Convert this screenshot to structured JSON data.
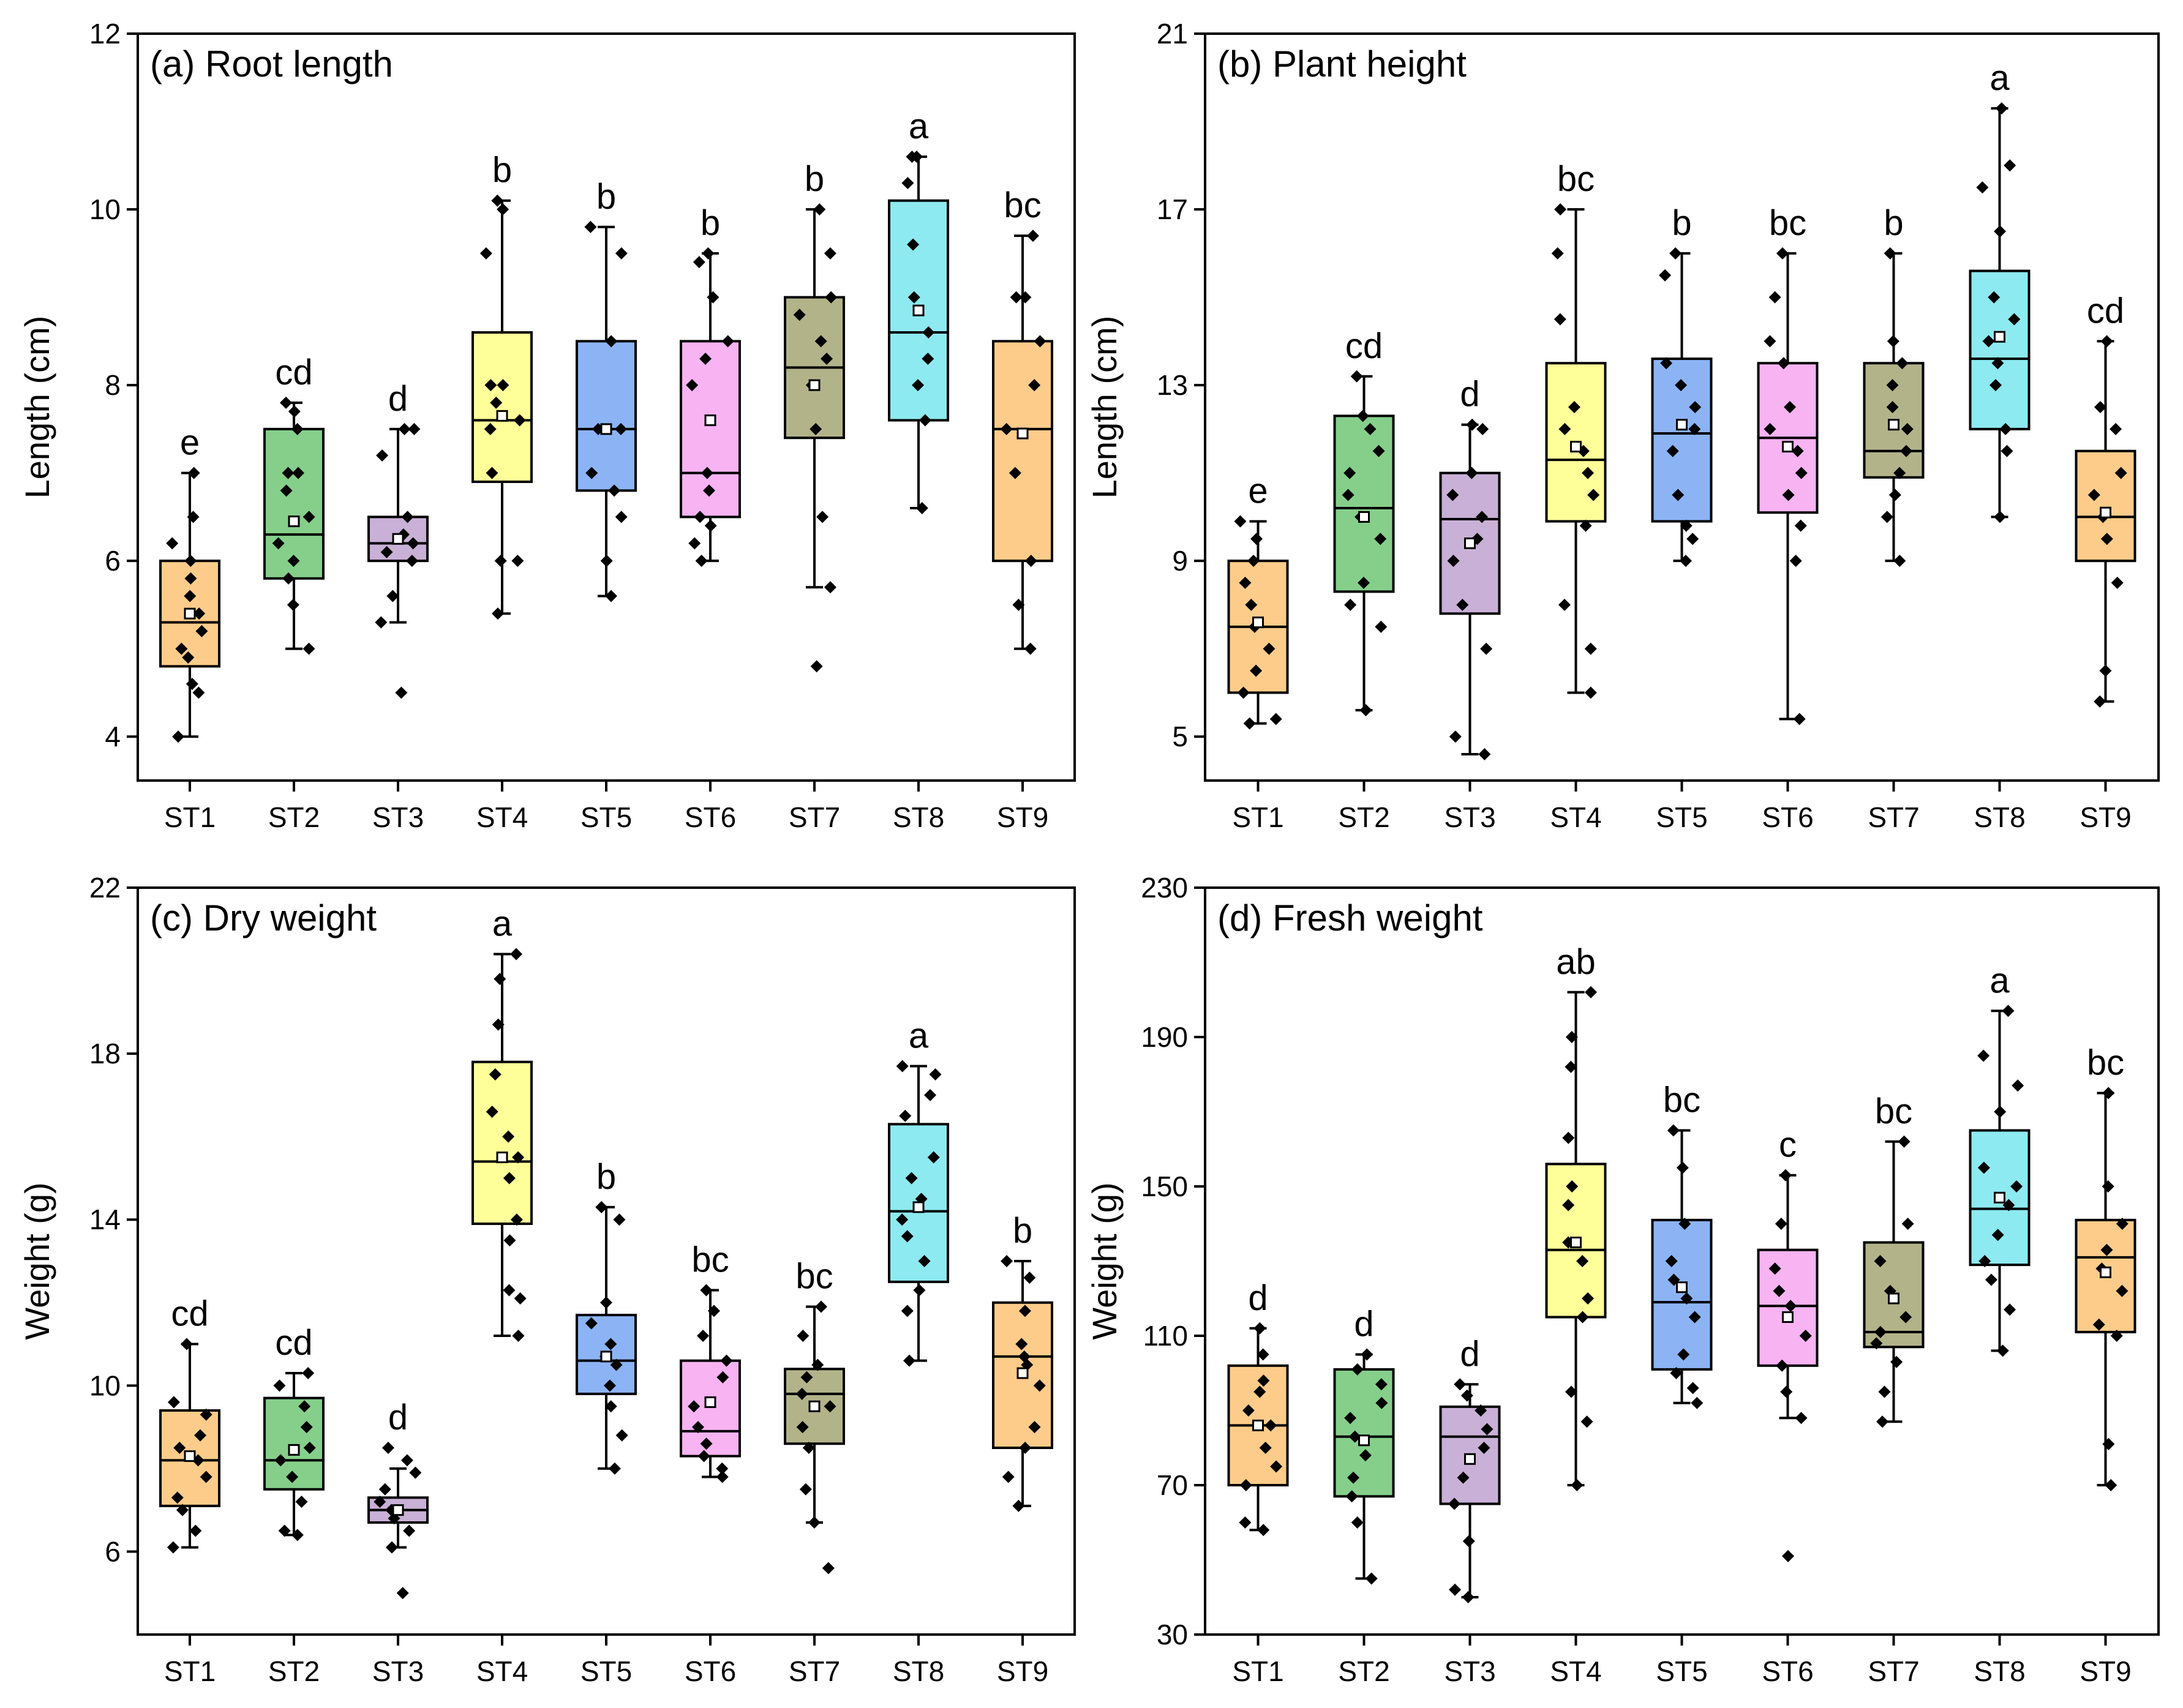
{
  "colors": {
    "ST1": "#FDCC8A",
    "ST2": "#86CF8B",
    "ST3": "#C9B0D6",
    "ST4": "#FFFF99",
    "ST5": "#8CB4F5",
    "ST6": "#F7B3F2",
    "ST7": "#B3B38A",
    "ST8": "#8DEAF0",
    "ST9": "#FDCC8A"
  },
  "chart_data": [
    {
      "id": "a",
      "type": "box",
      "title": "(a) Root length",
      "ylabel": "Length (cm)",
      "xlabel": "",
      "ylim": [
        3.5,
        12
      ],
      "yticks": [
        4,
        6,
        8,
        10,
        12
      ],
      "categories": [
        "ST1",
        "ST2",
        "ST3",
        "ST4",
        "ST5",
        "ST6",
        "ST7",
        "ST8",
        "ST9"
      ],
      "boxes": [
        {
          "min": 4.0,
          "q1": 4.8,
          "median": 5.3,
          "q3": 6.0,
          "max": 7.0,
          "mean": 5.4,
          "letter": "e",
          "points": [
            4.0,
            4.5,
            4.6,
            4.9,
            5.0,
            5.2,
            5.4,
            5.6,
            5.8,
            6.0,
            6.2,
            6.5,
            7.0
          ]
        },
        {
          "min": 5.0,
          "q1": 5.8,
          "median": 6.3,
          "q3": 7.5,
          "max": 7.8,
          "mean": 6.45,
          "letter": "cd",
          "points": [
            5.0,
            5.5,
            5.8,
            6.0,
            6.2,
            6.5,
            6.8,
            7.0,
            7.0,
            7.5,
            7.7,
            7.8
          ]
        },
        {
          "min": 5.3,
          "q1": 6.0,
          "median": 6.2,
          "q3": 6.5,
          "max": 7.5,
          "mean": 6.25,
          "letter": "d",
          "points": [
            4.5,
            5.3,
            5.6,
            6.0,
            6.1,
            6.2,
            6.3,
            6.5,
            7.2,
            7.5,
            7.5
          ]
        },
        {
          "min": 5.4,
          "q1": 6.9,
          "median": 7.6,
          "q3": 8.6,
          "max": 10.1,
          "mean": 7.65,
          "letter": "b",
          "points": [
            5.4,
            6.0,
            6.0,
            7.0,
            7.5,
            7.6,
            7.8,
            8.0,
            8.0,
            9.5,
            10.0,
            10.1
          ]
        },
        {
          "min": 5.6,
          "q1": 6.8,
          "median": 7.5,
          "q3": 8.5,
          "max": 9.8,
          "mean": 7.5,
          "letter": "b",
          "points": [
            5.6,
            6.0,
            6.5,
            6.8,
            7.0,
            7.5,
            7.5,
            8.5,
            9.5,
            9.8
          ]
        },
        {
          "min": 6.0,
          "q1": 6.5,
          "median": 7.0,
          "q3": 8.5,
          "max": 9.5,
          "mean": 7.6,
          "letter": "b",
          "points": [
            6.0,
            6.2,
            6.4,
            6.5,
            6.8,
            7.0,
            8.0,
            8.3,
            8.5,
            9.0,
            9.4,
            9.5
          ]
        },
        {
          "min": 5.7,
          "q1": 7.4,
          "median": 8.2,
          "q3": 9.0,
          "max": 10.0,
          "mean": 8.0,
          "letter": "b",
          "points": [
            4.8,
            5.7,
            6.5,
            7.5,
            8.0,
            8.3,
            8.5,
            8.8,
            9.0,
            9.5,
            10.0
          ]
        },
        {
          "min": 6.6,
          "q1": 7.6,
          "median": 8.6,
          "q3": 10.1,
          "max": 10.6,
          "mean": 8.85,
          "letter": "a",
          "points": [
            6.6,
            7.6,
            8.0,
            8.3,
            8.6,
            9.0,
            9.6,
            10.3,
            10.6,
            10.6
          ]
        },
        {
          "min": 5.0,
          "q1": 6.0,
          "median": 7.5,
          "q3": 8.5,
          "max": 9.7,
          "mean": 7.45,
          "letter": "bc",
          "points": [
            5.0,
            5.5,
            6.0,
            7.0,
            7.5,
            8.0,
            8.5,
            9.0,
            9.0,
            9.7
          ]
        }
      ]
    },
    {
      "id": "b",
      "type": "box",
      "title": "(b) Plant height",
      "ylabel": "Length (cm)",
      "xlabel": "",
      "ylim": [
        4,
        21
      ],
      "yticks": [
        5,
        9,
        13,
        17,
        21
      ],
      "categories": [
        "ST1",
        "ST2",
        "ST3",
        "ST4",
        "ST5",
        "ST6",
        "ST7",
        "ST8",
        "ST9"
      ],
      "boxes": [
        {
          "min": 5.3,
          "q1": 6.0,
          "median": 7.5,
          "q3": 9.0,
          "max": 9.9,
          "mean": 7.6,
          "letter": "e",
          "points": [
            5.3,
            5.4,
            6.0,
            6.5,
            7.0,
            7.5,
            8.0,
            8.5,
            9.0,
            9.5,
            9.9
          ]
        },
        {
          "min": 5.6,
          "q1": 8.3,
          "median": 10.2,
          "q3": 12.3,
          "max": 13.2,
          "mean": 10.0,
          "letter": "cd",
          "points": [
            5.6,
            7.5,
            8.0,
            8.5,
            9.5,
            10.0,
            10.5,
            11.0,
            11.5,
            12.0,
            12.3,
            13.2
          ]
        },
        {
          "min": 4.6,
          "q1": 7.8,
          "median": 9.95,
          "q3": 11.0,
          "max": 12.1,
          "mean": 9.4,
          "letter": "d",
          "points": [
            4.6,
            5.0,
            7.0,
            8.0,
            9.0,
            9.5,
            10.0,
            10.5,
            11.0,
            12.0,
            12.1
          ]
        },
        {
          "min": 6.0,
          "q1": 9.9,
          "median": 11.3,
          "q3": 13.5,
          "max": 17.0,
          "mean": 11.6,
          "letter": "bc",
          "points": [
            6.0,
            7.0,
            8.0,
            9.8,
            10.5,
            11.0,
            11.5,
            12.0,
            12.5,
            14.5,
            16.0,
            17.0
          ]
        },
        {
          "min": 9.0,
          "q1": 9.9,
          "median": 11.9,
          "q3": 13.6,
          "max": 16.0,
          "mean": 12.1,
          "letter": "b",
          "points": [
            9.0,
            9.5,
            9.8,
            10.5,
            11.5,
            12.0,
            12.5,
            13.0,
            13.5,
            15.5,
            16.0
          ]
        },
        {
          "min": 5.4,
          "q1": 10.1,
          "median": 11.8,
          "q3": 13.5,
          "max": 16.0,
          "mean": 11.6,
          "letter": "bc",
          "points": [
            5.4,
            9.0,
            9.8,
            10.5,
            11.0,
            11.5,
            12.0,
            12.5,
            13.5,
            14.0,
            15.0,
            16.0
          ]
        },
        {
          "min": 9.0,
          "q1": 10.9,
          "median": 11.5,
          "q3": 13.5,
          "max": 16.0,
          "mean": 12.1,
          "letter": "b",
          "points": [
            9.0,
            10.0,
            10.5,
            11.0,
            11.5,
            12.0,
            12.5,
            13.0,
            13.5,
            14.0,
            16.0
          ]
        },
        {
          "min": 10.0,
          "q1": 12.0,
          "median": 13.6,
          "q3": 15.6,
          "max": 19.3,
          "mean": 14.1,
          "letter": "a",
          "points": [
            10.0,
            11.5,
            12.0,
            13.0,
            13.5,
            14.0,
            14.5,
            15.0,
            16.5,
            17.5,
            18.0,
            19.3
          ]
        },
        {
          "min": 5.8,
          "q1": 9.0,
          "median": 10.0,
          "q3": 11.5,
          "max": 14.0,
          "mean": 10.1,
          "letter": "cd",
          "points": [
            5.8,
            6.5,
            8.5,
            9.5,
            10.0,
            10.5,
            11.0,
            12.0,
            12.5,
            14.0
          ]
        }
      ]
    },
    {
      "id": "c",
      "type": "box",
      "title": "(c) Dry weight",
      "ylabel": "Weight (g)",
      "xlabel": "",
      "ylim": [
        4,
        22
      ],
      "yticks": [
        6,
        10,
        14,
        18,
        22
      ],
      "categories": [
        "ST1",
        "ST2",
        "ST3",
        "ST4",
        "ST5",
        "ST6",
        "ST7",
        "ST8",
        "ST9"
      ],
      "boxes": [
        {
          "min": 6.1,
          "q1": 7.1,
          "median": 8.2,
          "q3": 9.4,
          "max": 11.0,
          "mean": 8.3,
          "letter": "cd",
          "points": [
            6.1,
            6.5,
            7.0,
            7.3,
            7.8,
            8.2,
            8.5,
            8.8,
            9.3,
            9.6,
            11.0
          ]
        },
        {
          "min": 6.4,
          "q1": 7.5,
          "median": 8.2,
          "q3": 9.7,
          "max": 10.3,
          "mean": 8.45,
          "letter": "cd",
          "points": [
            6.4,
            6.5,
            7.2,
            7.8,
            8.2,
            8.5,
            9.0,
            9.5,
            10.0,
            10.3
          ]
        },
        {
          "min": 6.1,
          "q1": 6.7,
          "median": 7.0,
          "q3": 7.3,
          "max": 8.0,
          "mean": 7.0,
          "letter": "d",
          "points": [
            5.0,
            6.1,
            6.5,
            6.8,
            7.0,
            7.2,
            7.5,
            7.9,
            8.2,
            8.5
          ]
        },
        {
          "min": 11.2,
          "q1": 13.9,
          "median": 15.4,
          "q3": 17.8,
          "max": 20.4,
          "mean": 15.5,
          "letter": "a",
          "points": [
            11.2,
            12.1,
            12.3,
            13.5,
            14.0,
            15.0,
            15.5,
            16.0,
            16.6,
            17.5,
            18.7,
            19.8,
            20.4
          ]
        },
        {
          "min": 8.0,
          "q1": 9.8,
          "median": 10.6,
          "q3": 11.7,
          "max": 14.3,
          "mean": 10.7,
          "letter": "b",
          "points": [
            8.0,
            8.8,
            9.5,
            10.0,
            10.5,
            10.7,
            11.0,
            11.5,
            12.0,
            14.0,
            14.3
          ]
        },
        {
          "min": 7.8,
          "q1": 8.3,
          "median": 8.9,
          "q3": 10.6,
          "max": 12.3,
          "mean": 9.6,
          "letter": "bc",
          "points": [
            7.8,
            8.0,
            8.3,
            8.6,
            9.0,
            9.5,
            10.2,
            10.6,
            11.2,
            11.8,
            12.3
          ]
        },
        {
          "min": 6.7,
          "q1": 8.6,
          "median": 9.8,
          "q3": 10.4,
          "max": 11.9,
          "mean": 9.5,
          "letter": "bc",
          "points": [
            5.6,
            6.7,
            7.5,
            8.5,
            9.0,
            9.5,
            9.8,
            10.2,
            10.5,
            11.2,
            11.9
          ]
        },
        {
          "min": 10.6,
          "q1": 12.5,
          "median": 14.2,
          "q3": 16.3,
          "max": 17.7,
          "mean": 14.3,
          "letter": "a",
          "points": [
            10.6,
            11.8,
            12.3,
            13.0,
            13.6,
            14.0,
            14.5,
            15.0,
            15.5,
            16.5,
            17.0,
            17.5,
            17.7
          ]
        },
        {
          "min": 7.1,
          "q1": 8.5,
          "median": 10.7,
          "q3": 12.0,
          "max": 13.0,
          "mean": 10.3,
          "letter": "b",
          "points": [
            7.1,
            7.8,
            8.5,
            9.0,
            10.0,
            10.5,
            10.7,
            11.0,
            11.8,
            12.6,
            13.0
          ]
        }
      ]
    },
    {
      "id": "d",
      "type": "box",
      "title": "(d) Fresh weight",
      "ylabel": "Weight (g)",
      "xlabel": "",
      "ylim": [
        30,
        230
      ],
      "yticks": [
        30,
        70,
        110,
        150,
        190,
        230
      ],
      "categories": [
        "ST1",
        "ST2",
        "ST3",
        "ST4",
        "ST5",
        "ST6",
        "ST7",
        "ST8",
        "ST9"
      ],
      "boxes": [
        {
          "min": 58,
          "q1": 70,
          "median": 86,
          "q3": 102,
          "max": 112,
          "mean": 86,
          "letter": "d",
          "points": [
            58,
            60,
            70,
            75,
            80,
            86,
            90,
            95,
            98,
            105,
            112
          ]
        },
        {
          "min": 45,
          "q1": 67,
          "median": 83,
          "q3": 101,
          "max": 105,
          "mean": 82,
          "letter": "d",
          "points": [
            45,
            60,
            67,
            72,
            78,
            83,
            88,
            92,
            97,
            101,
            105
          ]
        },
        {
          "min": 40,
          "q1": 65,
          "median": 83,
          "q3": 91,
          "max": 97,
          "mean": 77,
          "letter": "d",
          "points": [
            40,
            42,
            55,
            65,
            72,
            80,
            85,
            90,
            94,
            97
          ]
        },
        {
          "min": 70,
          "q1": 115,
          "median": 133,
          "q3": 156,
          "max": 202,
          "mean": 135,
          "letter": "ab",
          "points": [
            70,
            87,
            95,
            115,
            120,
            130,
            135,
            145,
            150,
            163,
            182,
            190,
            202
          ]
        },
        {
          "min": 92,
          "q1": 101,
          "median": 119,
          "q3": 141,
          "max": 165,
          "mean": 123,
          "letter": "bc",
          "points": [
            92,
            96,
            100,
            105,
            115,
            120,
            125,
            130,
            140,
            155,
            165
          ]
        },
        {
          "min": 88,
          "q1": 102,
          "median": 118,
          "q3": 133,
          "max": 153,
          "mean": 115,
          "letter": "c",
          "points": [
            51,
            88,
            95,
            102,
            110,
            118,
            122,
            128,
            140,
            153
          ]
        },
        {
          "min": 87,
          "q1": 107,
          "median": 111,
          "q3": 135,
          "max": 162,
          "mean": 120,
          "letter": "bc",
          "points": [
            87,
            95,
            103,
            108,
            111,
            115,
            122,
            130,
            140,
            162
          ]
        },
        {
          "min": 106,
          "q1": 129,
          "median": 144,
          "q3": 165,
          "max": 197,
          "mean": 147,
          "letter": "a",
          "points": [
            106,
            117,
            125,
            130,
            137,
            145,
            150,
            155,
            170,
            177,
            185,
            197
          ]
        },
        {
          "min": 70,
          "q1": 111,
          "median": 131,
          "q3": 141,
          "max": 175,
          "mean": 127,
          "letter": "bc",
          "points": [
            70,
            81,
            110,
            113,
            122,
            128,
            133,
            140,
            150,
            175
          ]
        }
      ]
    }
  ]
}
